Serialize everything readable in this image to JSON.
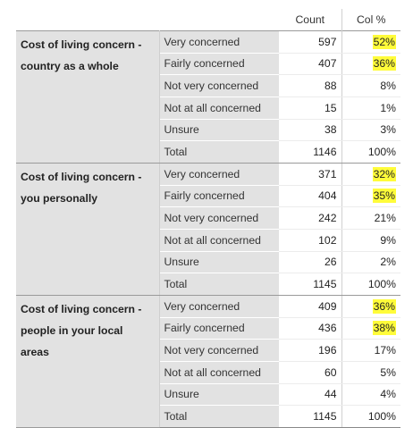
{
  "header": {
    "count_label": "Count",
    "pct_label": "Col %"
  },
  "groups": [
    {
      "title": "Cost of living concern - country as a whole",
      "rows": [
        {
          "label": "Very concerned",
          "count": "597",
          "pct": "52%",
          "highlight": true
        },
        {
          "label": "Fairly concerned",
          "count": "407",
          "pct": "36%",
          "highlight": true
        },
        {
          "label": "Not very concerned",
          "count": "88",
          "pct": "8%",
          "highlight": false
        },
        {
          "label": "Not at all concerned",
          "count": "15",
          "pct": "1%",
          "highlight": false
        },
        {
          "label": "Unsure",
          "count": "38",
          "pct": "3%",
          "highlight": false
        },
        {
          "label": "Total",
          "count": "1146",
          "pct": "100%",
          "highlight": false
        }
      ]
    },
    {
      "title": "Cost of living concern - you personally",
      "rows": [
        {
          "label": "Very concerned",
          "count": "371",
          "pct": "32%",
          "highlight": true
        },
        {
          "label": "Fairly concerned",
          "count": "404",
          "pct": "35%",
          "highlight": true
        },
        {
          "label": "Not very concerned",
          "count": "242",
          "pct": "21%",
          "highlight": false
        },
        {
          "label": "Not at all concerned",
          "count": "102",
          "pct": "9%",
          "highlight": false
        },
        {
          "label": "Unsure",
          "count": "26",
          "pct": "2%",
          "highlight": false
        },
        {
          "label": "Total",
          "count": "1145",
          "pct": "100%",
          "highlight": false
        }
      ]
    },
    {
      "title": "Cost of living concern - people in your local areas",
      "rows": [
        {
          "label": "Very concerned",
          "count": "409",
          "pct": "36%",
          "highlight": true
        },
        {
          "label": "Fairly concerned",
          "count": "436",
          "pct": "38%",
          "highlight": true
        },
        {
          "label": "Not very concerned",
          "count": "196",
          "pct": "17%",
          "highlight": false
        },
        {
          "label": "Not at all concerned",
          "count": "60",
          "pct": "5%",
          "highlight": false
        },
        {
          "label": "Unsure",
          "count": "44",
          "pct": "4%",
          "highlight": false
        },
        {
          "label": "Total",
          "count": "1145",
          "pct": "100%",
          "highlight": false
        }
      ]
    }
  ],
  "colors": {
    "label_bg": "#e2e2e2",
    "highlight": "#fffc3a"
  }
}
